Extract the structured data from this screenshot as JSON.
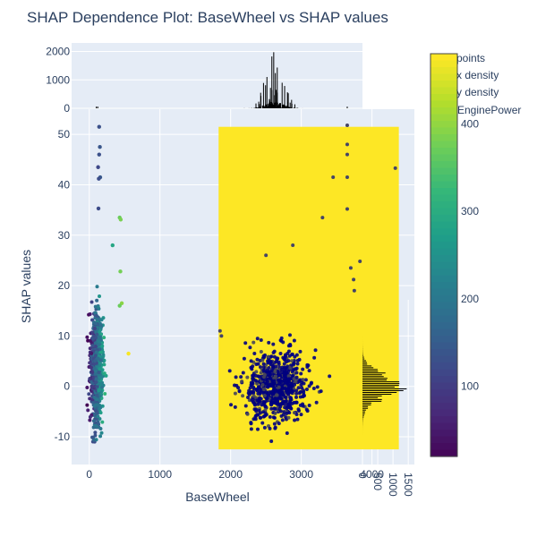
{
  "chart_data": {
    "type": "scatter",
    "title": "SHAP Dependence Plot: BaseWheel vs SHAP values",
    "xlabel": "BaseWheel",
    "ylabel": "SHAP values",
    "xlim": [
      -250,
      4600
    ],
    "ylim": [
      -15.5,
      55
    ],
    "x_ticks": [
      0,
      1000,
      2000,
      3000,
      4000
    ],
    "y_ticks": [
      -10,
      0,
      10,
      20,
      30,
      40,
      50
    ],
    "colorbar": {
      "title": "EnginePower",
      "range": [
        20,
        480
      ],
      "ticks": [
        100,
        200,
        300,
        400
      ],
      "colorscale": "Viridis"
    },
    "legend": {
      "placement": "top-right",
      "entries": [
        "points",
        "x density",
        "y density"
      ]
    },
    "density_region": {
      "x_range": [
        1830,
        4380
      ],
      "y_range": [
        -12.5,
        51.5
      ],
      "color": "#fde725"
    },
    "clusters": [
      {
        "x_mean": 100,
        "x_sd": 70,
        "y_mean": 4,
        "y_sd": 5,
        "n": 900,
        "color_feature": "mixed"
      },
      {
        "x_mean": 2650,
        "x_sd": 220,
        "y_mean": 0,
        "y_sd": 3.5,
        "n": 700,
        "color_feature": "low"
      }
    ],
    "outliers_left": [
      {
        "x": 140,
        "y": 51.5
      },
      {
        "x": 150,
        "y": 47.5
      },
      {
        "x": 140,
        "y": 46
      },
      {
        "x": 125,
        "y": 43.5
      },
      {
        "x": 155,
        "y": 41.5
      },
      {
        "x": 135,
        "y": 41.2
      },
      {
        "x": 130,
        "y": 35.3
      },
      {
        "x": 430,
        "y": 33.5
      },
      {
        "x": 445,
        "y": 33.1
      },
      {
        "x": 330,
        "y": 28
      },
      {
        "x": 440,
        "y": 22.8
      },
      {
        "x": 460,
        "y": 16.5
      },
      {
        "x": 555,
        "y": 6.5
      },
      {
        "x": 430,
        "y": 16
      }
    ],
    "outliers_right": [
      {
        "x": 3650,
        "y": 51.8
      },
      {
        "x": 3650,
        "y": 48
      },
      {
        "x": 3650,
        "y": 46
      },
      {
        "x": 4330,
        "y": 43.3
      },
      {
        "x": 3450,
        "y": 41.5
      },
      {
        "x": 3650,
        "y": 41.5
      },
      {
        "x": 3650,
        "y": 35.2
      },
      {
        "x": 3300,
        "y": 33.5
      },
      {
        "x": 2880,
        "y": 28
      },
      {
        "x": 3830,
        "y": 24.8
      },
      {
        "x": 2500,
        "y": 26
      },
      {
        "x": 3700,
        "y": 23.5
      },
      {
        "x": 3740,
        "y": 21.2
      },
      {
        "x": 3750,
        "y": 19
      },
      {
        "x": 1850,
        "y": 11
      },
      {
        "x": 1870,
        "y": 10
      }
    ],
    "x_density": {
      "ticks": [
        0,
        1000,
        2000
      ],
      "range": [
        0,
        2300
      ],
      "peak_x": 2620,
      "peak_count": 2000
    },
    "y_density": {
      "ticks": [
        0,
        500,
        1000,
        1500
      ],
      "range": [
        0,
        1700
      ],
      "peak_y": 0,
      "peak_count": 1500
    }
  }
}
